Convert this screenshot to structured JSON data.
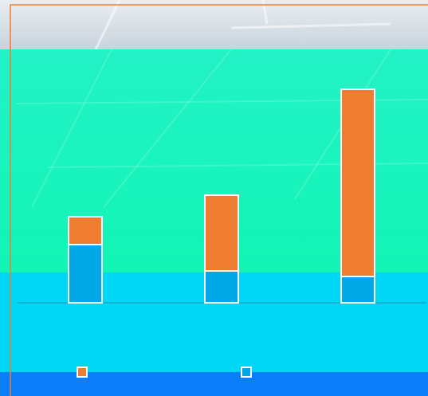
{
  "chart_data": {
    "type": "stacked_bar",
    "categories": [
      null,
      null,
      null
    ],
    "series": [
      {
        "color": "#00a8e8",
        "values": [
          73,
          40,
          33
        ]
      },
      {
        "color": "#ef7d31",
        "values": [
          35,
          95,
          235
        ]
      }
    ],
    "ylim": [
      0,
      300
    ],
    "grid": false,
    "legend": "bottom"
  }
}
